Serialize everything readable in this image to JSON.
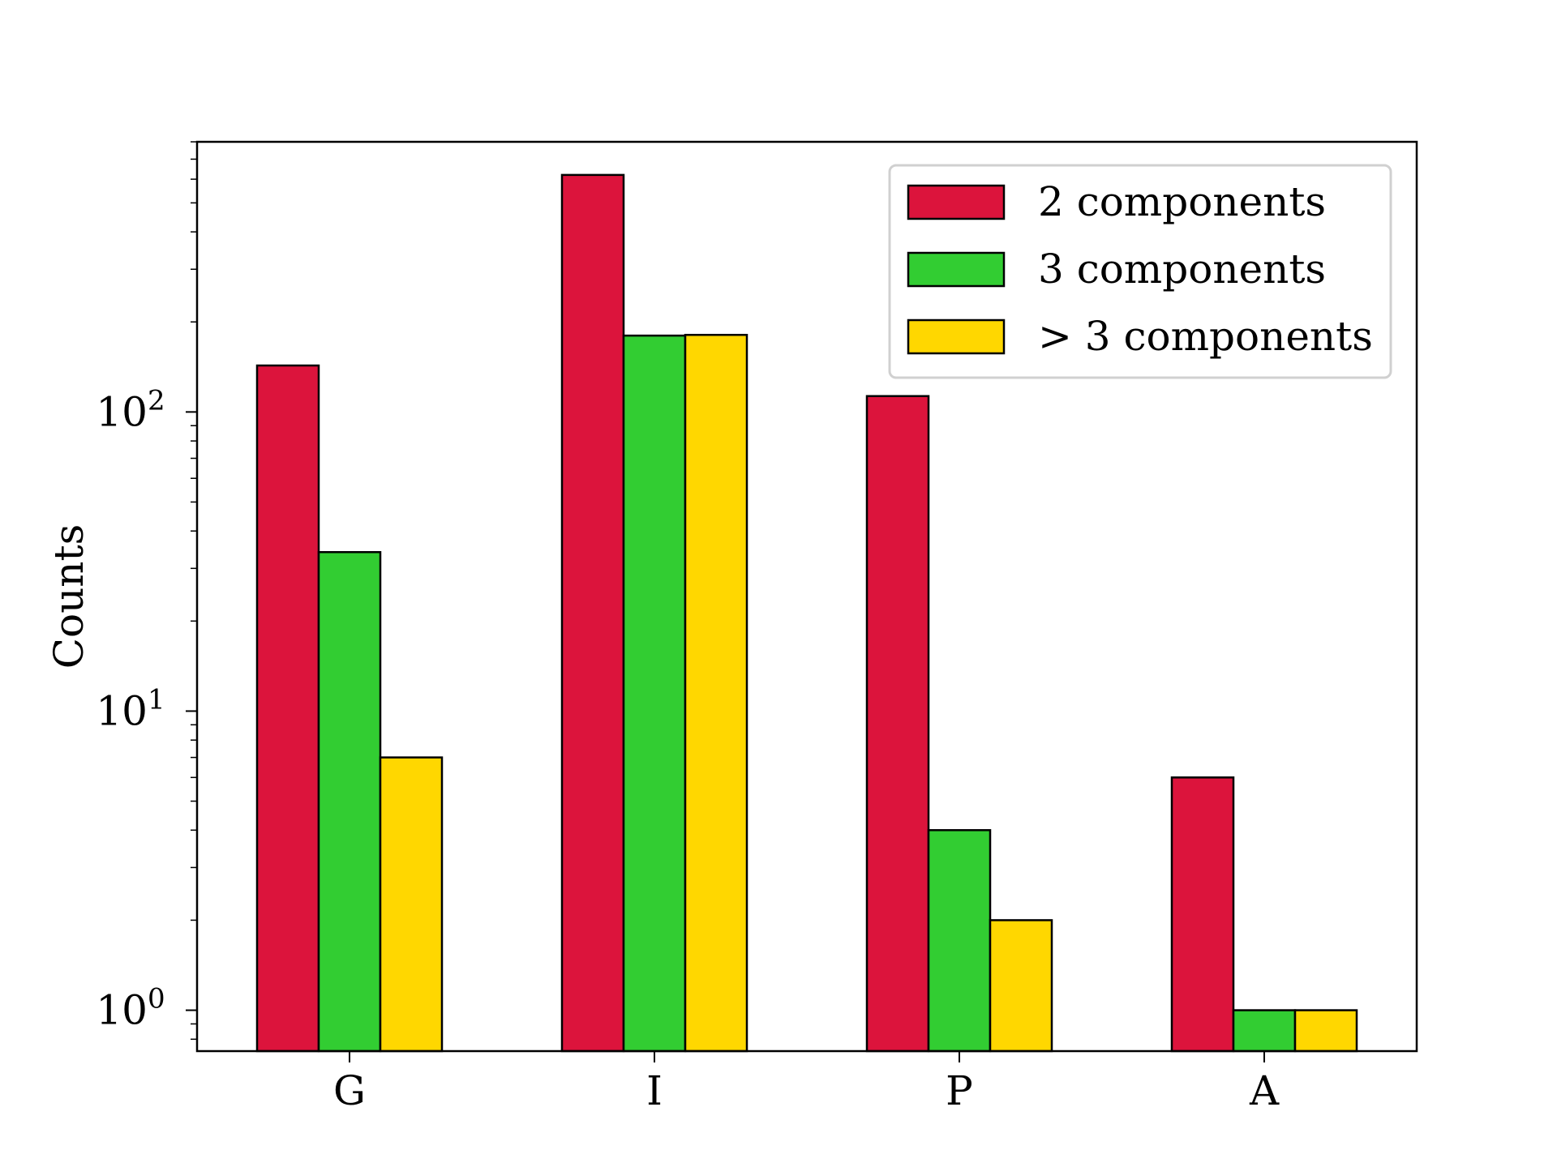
{
  "chart_data": {
    "type": "bar",
    "title": "",
    "xlabel": "",
    "ylabel": "Counts",
    "yscale": "log",
    "ylim": [
      0.73,
      800
    ],
    "grid": false,
    "legend_position": "top-right",
    "categories": [
      "G",
      "I",
      "P",
      "A"
    ],
    "yticks": [
      {
        "base": "10",
        "exp": "0",
        "value": 1
      },
      {
        "base": "10",
        "exp": "1",
        "value": 10
      },
      {
        "base": "10",
        "exp": "2",
        "value": 100
      }
    ],
    "series": [
      {
        "name": "2 components",
        "color": "#DC143C",
        "values": [
          143,
          620,
          113,
          6
        ]
      },
      {
        "name": "3 components",
        "color": "#32CD32",
        "values": [
          34,
          180,
          4,
          1
        ]
      },
      {
        "name": "> 3 components",
        "color": "#FFD700",
        "values": [
          7,
          181,
          2,
          1
        ]
      }
    ]
  }
}
